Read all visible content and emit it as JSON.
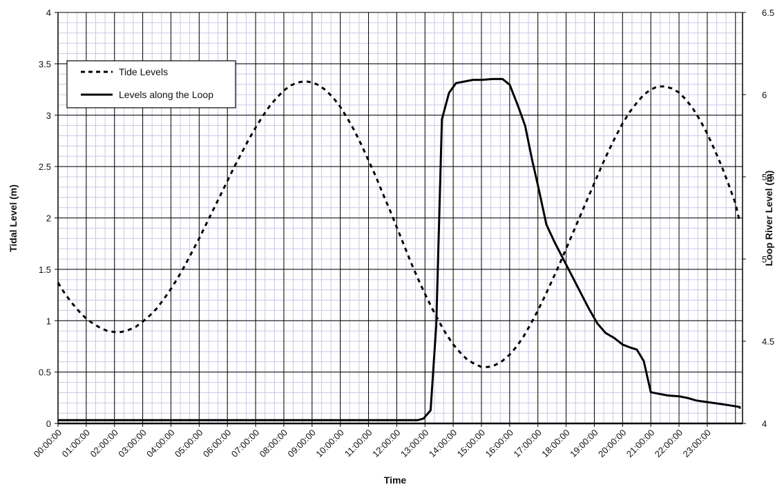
{
  "chart_data": {
    "type": "line",
    "xlabel": "Time",
    "ylabel_left": "Tidal Level (m)",
    "ylabel_right": "Loop River Level (m)",
    "x_ticks": [
      "00:00:00",
      "01:00:00",
      "02:00:00",
      "03:00:00",
      "04:00:00",
      "05:00:00",
      "06:00:00",
      "07:00:00",
      "08:00:00",
      "09:00:00",
      "10:00:00",
      "11:00:00",
      "12:00:00",
      "13:00:00",
      "14:00:00",
      "15:00:00",
      "16:00:00",
      "17:00:00",
      "18:00:00",
      "19:00:00",
      "20:00:00",
      "21:00:00",
      "22:00:00",
      "23:00:00"
    ],
    "xlim_hours": [
      0,
      24.25
    ],
    "ylim_left": [
      0,
      4
    ],
    "ylim_right": [
      4,
      6.5
    ],
    "y_ticks_left": [
      "0",
      "0.5",
      "1",
      "1.5",
      "2",
      "2.5",
      "3",
      "3.5",
      "4"
    ],
    "y_ticks_right": [
      "4",
      "4.5",
      "5",
      "5.5",
      "6",
      "6.5"
    ],
    "grid": true,
    "legend": "top-left",
    "series": [
      {
        "name": "Tide Levels",
        "style": "dotted",
        "axis": "left",
        "color": "#000000",
        "points": [
          [
            0.0,
            1.37
          ],
          [
            0.25,
            1.26
          ],
          [
            0.5,
            1.17
          ],
          [
            0.75,
            1.09
          ],
          [
            1.0,
            1.02
          ],
          [
            1.25,
            0.97
          ],
          [
            1.5,
            0.93
          ],
          [
            1.75,
            0.9
          ],
          [
            2.0,
            0.89
          ],
          [
            2.25,
            0.89
          ],
          [
            2.5,
            0.91
          ],
          [
            2.75,
            0.94
          ],
          [
            3.0,
            0.99
          ],
          [
            3.25,
            1.05
          ],
          [
            3.5,
            1.12
          ],
          [
            3.75,
            1.21
          ],
          [
            4.0,
            1.31
          ],
          [
            4.25,
            1.42
          ],
          [
            4.5,
            1.54
          ],
          [
            4.75,
            1.67
          ],
          [
            5.0,
            1.8
          ],
          [
            5.25,
            1.94
          ],
          [
            5.5,
            2.08
          ],
          [
            5.75,
            2.22
          ],
          [
            6.0,
            2.36
          ],
          [
            6.25,
            2.5
          ],
          [
            6.5,
            2.63
          ],
          [
            6.75,
            2.76
          ],
          [
            7.0,
            2.88
          ],
          [
            7.25,
            2.99
          ],
          [
            7.5,
            3.09
          ],
          [
            7.75,
            3.17
          ],
          [
            8.0,
            3.24
          ],
          [
            8.25,
            3.29
          ],
          [
            8.5,
            3.32
          ],
          [
            8.75,
            3.33
          ],
          [
            9.0,
            3.32
          ],
          [
            9.25,
            3.29
          ],
          [
            9.5,
            3.24
          ],
          [
            9.75,
            3.17
          ],
          [
            10.0,
            3.08
          ],
          [
            10.25,
            2.97
          ],
          [
            10.5,
            2.85
          ],
          [
            10.75,
            2.71
          ],
          [
            11.0,
            2.56
          ],
          [
            11.25,
            2.41
          ],
          [
            11.5,
            2.24
          ],
          [
            11.75,
            2.08
          ],
          [
            12.0,
            1.91
          ],
          [
            12.25,
            1.74
          ],
          [
            12.5,
            1.57
          ],
          [
            12.75,
            1.41
          ],
          [
            13.0,
            1.26
          ],
          [
            13.25,
            1.12
          ],
          [
            13.5,
            0.99
          ],
          [
            13.75,
            0.87
          ],
          [
            14.0,
            0.77
          ],
          [
            14.25,
            0.69
          ],
          [
            14.5,
            0.62
          ],
          [
            14.75,
            0.58
          ],
          [
            15.0,
            0.55
          ],
          [
            15.25,
            0.55
          ],
          [
            15.5,
            0.57
          ],
          [
            15.75,
            0.61
          ],
          [
            16.0,
            0.67
          ],
          [
            16.25,
            0.75
          ],
          [
            16.5,
            0.85
          ],
          [
            16.75,
            0.97
          ],
          [
            17.0,
            1.1
          ],
          [
            17.25,
            1.24
          ],
          [
            17.5,
            1.39
          ],
          [
            17.75,
            1.54
          ],
          [
            18.0,
            1.7
          ],
          [
            18.25,
            1.86
          ],
          [
            18.5,
            2.02
          ],
          [
            18.75,
            2.18
          ],
          [
            19.0,
            2.34
          ],
          [
            19.25,
            2.5
          ],
          [
            19.5,
            2.65
          ],
          [
            19.75,
            2.79
          ],
          [
            20.0,
            2.92
          ],
          [
            20.25,
            3.03
          ],
          [
            20.5,
            3.12
          ],
          [
            20.75,
            3.2
          ],
          [
            21.0,
            3.25
          ],
          [
            21.25,
            3.28
          ],
          [
            21.5,
            3.28
          ],
          [
            21.75,
            3.26
          ],
          [
            22.0,
            3.22
          ],
          [
            22.25,
            3.15
          ],
          [
            22.5,
            3.06
          ],
          [
            22.75,
            2.95
          ],
          [
            23.0,
            2.82
          ],
          [
            23.25,
            2.67
          ],
          [
            23.5,
            2.51
          ],
          [
            23.75,
            2.33
          ],
          [
            24.0,
            2.14
          ],
          [
            24.25,
            1.96
          ]
        ]
      },
      {
        "name": "Levels along the Loop",
        "style": "solid",
        "axis": "right",
        "color": "#000000",
        "points": [
          [
            0.0,
            4.02
          ],
          [
            12.0,
            4.02
          ],
          [
            12.75,
            4.02
          ],
          [
            12.95,
            4.03
          ],
          [
            13.2,
            4.08
          ],
          [
            13.4,
            4.6
          ],
          [
            13.6,
            5.85
          ],
          [
            13.85,
            6.01
          ],
          [
            14.1,
            6.07
          ],
          [
            14.4,
            6.08
          ],
          [
            14.7,
            6.09
          ],
          [
            15.0,
            6.09
          ],
          [
            15.4,
            6.095
          ],
          [
            15.75,
            6.095
          ],
          [
            16.0,
            6.06
          ],
          [
            16.3,
            5.93
          ],
          [
            16.55,
            5.81
          ],
          [
            16.8,
            5.6
          ],
          [
            17.0,
            5.45
          ],
          [
            17.3,
            5.21
          ],
          [
            17.6,
            5.1
          ],
          [
            17.9,
            5.0
          ],
          [
            18.2,
            4.9
          ],
          [
            18.5,
            4.8
          ],
          [
            18.8,
            4.7
          ],
          [
            19.1,
            4.61
          ],
          [
            19.4,
            4.55
          ],
          [
            19.7,
            4.52
          ],
          [
            20.0,
            4.48
          ],
          [
            20.3,
            4.46
          ],
          [
            20.5,
            4.45
          ],
          [
            20.75,
            4.38
          ],
          [
            21.0,
            4.19
          ],
          [
            21.3,
            4.18
          ],
          [
            21.6,
            4.17
          ],
          [
            22.0,
            4.165
          ],
          [
            22.3,
            4.155
          ],
          [
            22.6,
            4.14
          ],
          [
            23.0,
            4.13
          ],
          [
            23.4,
            4.12
          ],
          [
            23.8,
            4.11
          ],
          [
            24.2,
            4.1
          ],
          [
            24.6,
            4.095
          ],
          [
            25.0,
            4.09
          ],
          [
            25.1,
            4.09
          ]
        ]
      }
    ]
  }
}
